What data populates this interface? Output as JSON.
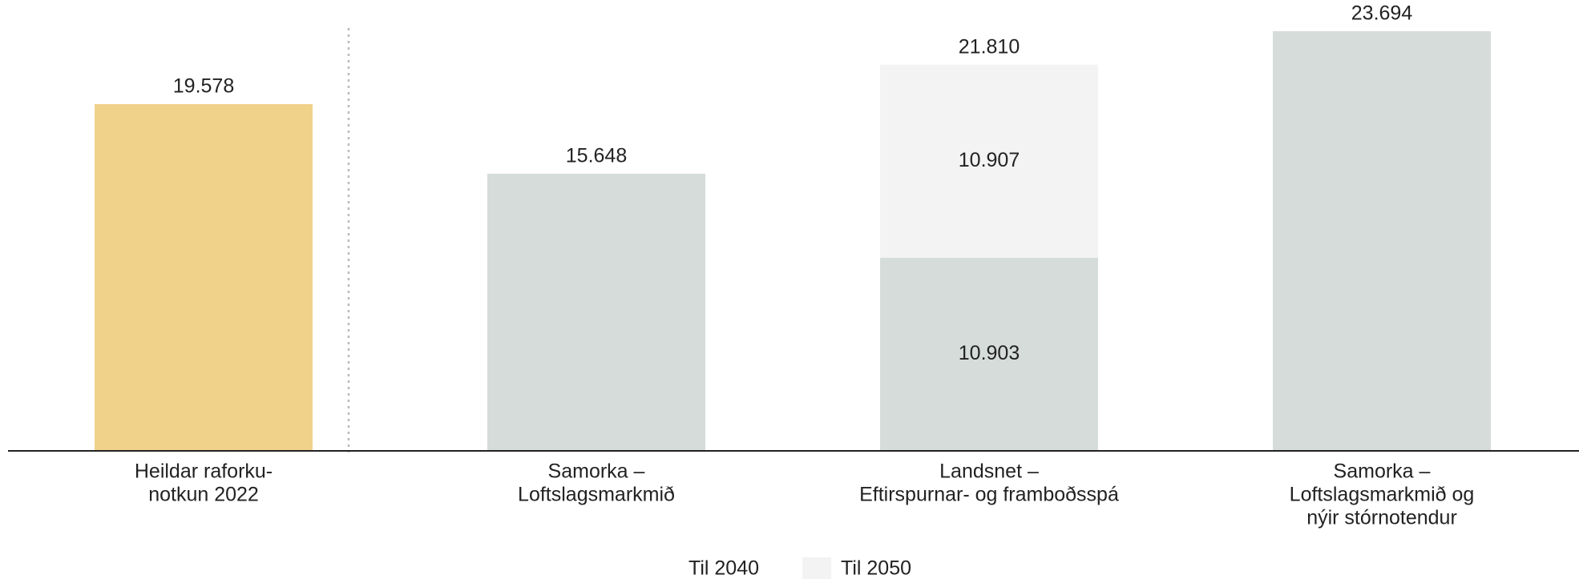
{
  "chart_data": {
    "type": "stacked_bar",
    "categories": [
      [
        "Heildar raforku-",
        "notkun 2022"
      ],
      [
        "Samorka –",
        "Loftslagsmarkmið"
      ],
      [
        "Landsnet –",
        "Eftirspurnar- og framboðsspá"
      ],
      [
        "Samorka –",
        "Loftslagsmarkmið og",
        "nýir stórnotendur"
      ]
    ],
    "series": [
      {
        "name": "Til 2040",
        "color": "#d5dcd9",
        "point_colors": [
          "#f0d28a",
          null,
          null,
          null
        ],
        "values": [
          19578,
          15648,
          10903,
          23694
        ],
        "value_labels": [
          "19.578",
          "15.648",
          "10.903",
          "23.694"
        ]
      },
      {
        "name": "Til 2050",
        "color": "#f2f3f2",
        "values": [
          null,
          null,
          10907,
          null
        ],
        "value_labels": [
          null,
          null,
          "10.907",
          null
        ]
      }
    ],
    "totals": {
      "values": [
        null,
        null,
        21810,
        null
      ],
      "value_labels": [
        null,
        null,
        "21.810",
        null
      ]
    },
    "legend": "bottom"
  }
}
